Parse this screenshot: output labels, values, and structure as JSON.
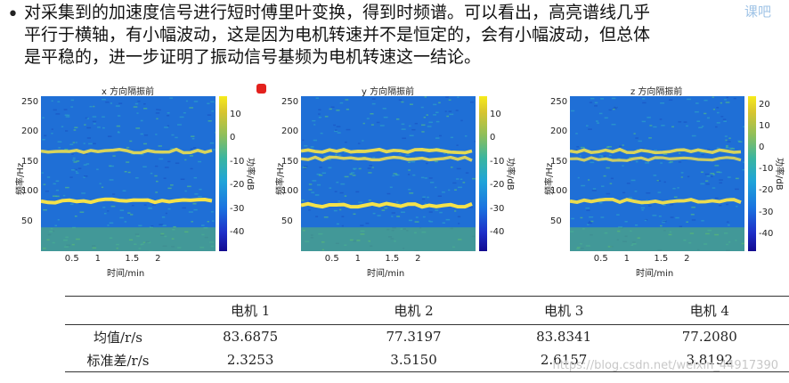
{
  "paragraph": {
    "bullet": "•",
    "lines": [
      "对采集到的加速度信号进行短时傅里叶变换，得到时频谱。可以看出，高亮谱线几乎",
      "平行于横轴，有小幅波动，这是因为电机转速并不是恒定的，会有小幅波动，但总体",
      "是平稳的，进一步证明了振动信号基频为电机转速这一结论。"
    ]
  },
  "corner_logo": "课吧",
  "colors": {
    "marker": "#e3211d",
    "spectrogram_bg": "#1f6fd6",
    "band": "#f4e24a"
  },
  "chart_data": [
    {
      "type": "heatmap",
      "title": "x 方向隔振前",
      "xlabel": "时间/min",
      "ylabel": "频率/Hz",
      "colorbar_label": "功率/dB",
      "xticks": [
        "0.5",
        "1",
        "1.5",
        "2"
      ],
      "yticks": [
        "250",
        "200",
        "150",
        "100",
        "50"
      ],
      "colorbar_ticks": [
        "10",
        "0",
        "-10",
        "-20",
        "-30",
        "-40"
      ],
      "xlim": [
        0,
        2.9
      ],
      "ylim": [
        0,
        260
      ],
      "clim": [
        -48,
        18
      ],
      "bands": [
        {
          "freq": 168,
          "strength": 0.75
        },
        {
          "freq": 84,
          "strength": 1.0
        }
      ]
    },
    {
      "type": "heatmap",
      "title": "y 方向隔振前",
      "xlabel": "时间/min",
      "ylabel": "频率/Hz",
      "colorbar_label": "功率/dB",
      "xticks": [
        "0.5",
        "1",
        "1.5",
        "2"
      ],
      "yticks": [
        "250",
        "200",
        "150",
        "100",
        "50"
      ],
      "colorbar_ticks": [
        "10",
        "0",
        "-10",
        "-20",
        "-30",
        "-40"
      ],
      "xlim": [
        0,
        2.9
      ],
      "ylim": [
        0,
        260
      ],
      "clim": [
        -48,
        18
      ],
      "bands": [
        {
          "freq": 168,
          "strength": 0.85
        },
        {
          "freq": 155,
          "strength": 0.7
        },
        {
          "freq": 77,
          "strength": 1.0
        }
      ]
    },
    {
      "type": "heatmap",
      "title": "z 方向隔振前",
      "xlabel": "时间/min",
      "ylabel": "频率/Hz",
      "colorbar_label": "功率/dB",
      "xticks": [
        "0.5",
        "1",
        "1.5",
        "2"
      ],
      "yticks": [
        "250",
        "200",
        "150",
        "100",
        "50"
      ],
      "colorbar_ticks": [
        "20",
        "10",
        "0",
        "-10",
        "-20",
        "-30",
        "-40"
      ],
      "xlim": [
        0,
        2.9
      ],
      "ylim": [
        0,
        260
      ],
      "clim": [
        -48,
        24
      ],
      "bands": [
        {
          "freq": 168,
          "strength": 0.75
        },
        {
          "freq": 155,
          "strength": 0.6
        },
        {
          "freq": 84,
          "strength": 0.9
        }
      ]
    }
  ],
  "table": {
    "headers": [
      "",
      "电机 1",
      "电机 2",
      "电机 3",
      "电机 4"
    ],
    "rows": [
      [
        "均值/r/s",
        "83.6875",
        "77.3197",
        "83.8341",
        "77.2080"
      ],
      [
        "标准差/r/s",
        "2.3253",
        "3.5150",
        "2.6157",
        "3.8192"
      ]
    ]
  },
  "watermark": "https://blog.csdn.net/weixin_44917390"
}
